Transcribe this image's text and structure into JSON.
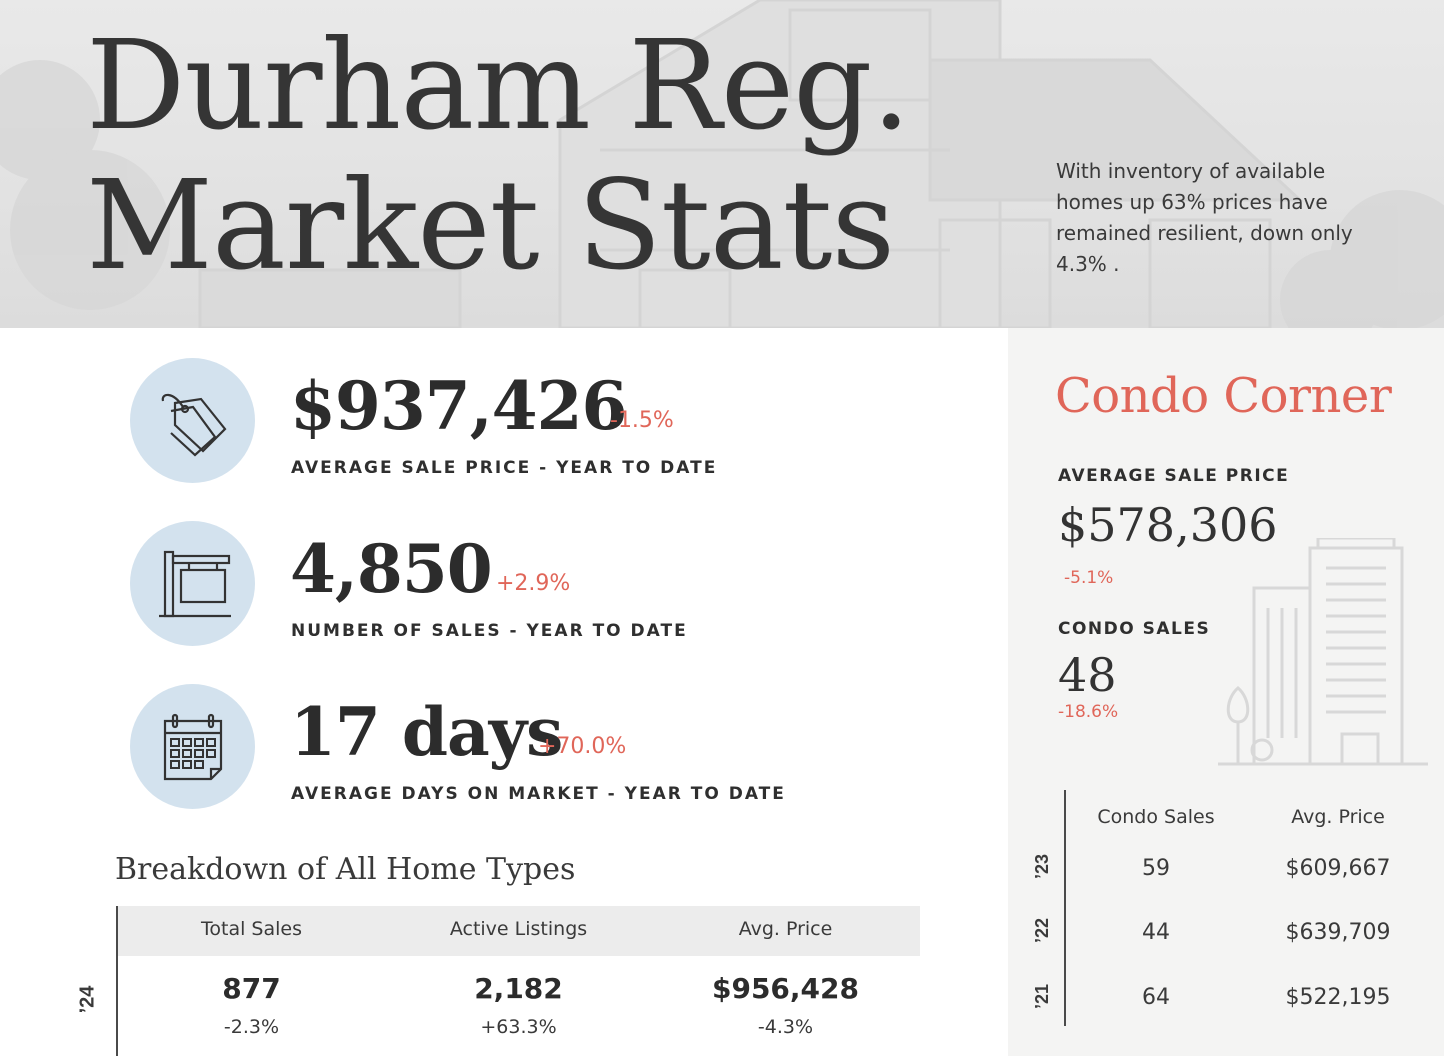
{
  "header": {
    "title_line1": "Durham Reg.",
    "title_line2": "Market Stats",
    "subtitle": "With inventory of available homes up 63% prices have remained resilient, down only 4.3% ."
  },
  "stats": [
    {
      "icon": "price-tag-icon",
      "value": "$937,426",
      "change": "-1.5%",
      "label": "AVERAGE SALE PRICE - YEAR TO DATE"
    },
    {
      "icon": "for-sale-sign-icon",
      "value": "4,850",
      "change": "+2.9%",
      "label": "NUMBER OF SALES - YEAR TO DATE"
    },
    {
      "icon": "calendar-icon",
      "value": "17 days",
      "change": "+70.0%",
      "label": "AVERAGE DAYS ON MARKET - YEAR TO DATE"
    }
  ],
  "breakdown": {
    "title": "Breakdown of All Home Types",
    "columns": [
      "Total Sales",
      "Active Listings",
      "Avg. Price"
    ],
    "year": "’24",
    "values": [
      "877",
      "2,182",
      "$956,428"
    ],
    "changes": [
      "-2.3%",
      "+63.3%",
      "-4.3%"
    ]
  },
  "condo": {
    "title": "Condo Corner",
    "avg_label": "AVERAGE SALE PRICE",
    "avg_value": "$578,306",
    "avg_change": "-5.1%",
    "sales_label": "CONDO SALES",
    "sales_value": "48",
    "sales_change": "-18.6%",
    "icon": "condo-building-icon",
    "table": {
      "columns": [
        "Condo Sales",
        "Avg. Price"
      ],
      "rows": [
        {
          "year": "’23",
          "sales": "59",
          "price": "$609,667"
        },
        {
          "year": "’22",
          "sales": "44",
          "price": "$639,709"
        },
        {
          "year": "’21",
          "sales": "64",
          "price": "$522,195"
        }
      ]
    }
  },
  "colors": {
    "accent": "#e06659",
    "icon_circle": "#d3e2ee",
    "panel": "#f4f4f3"
  }
}
